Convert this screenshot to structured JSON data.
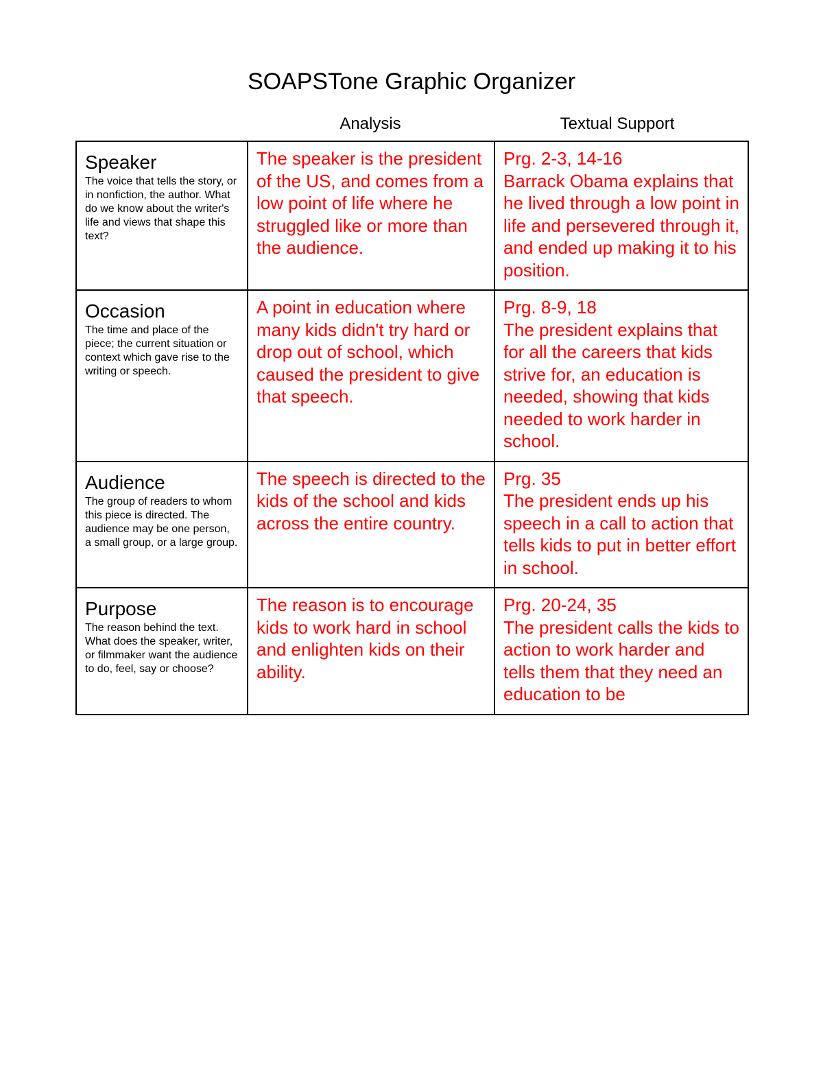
{
  "title": "SOAPSTone Graphic Organizer",
  "columns": {
    "analysis": "Analysis",
    "support": "Textual Support"
  },
  "text_color": "#000000",
  "answer_color": "#ff0000",
  "border_color": "#000000",
  "background_color": "#ffffff",
  "rows": [
    {
      "category": "Speaker",
      "description": "The voice that tells the story, or in nonfiction, the author. What do we know about the writer's life and views that shape this text?",
      "analysis": "The speaker is the president of the US, and comes from a low point of life where he struggled like or more than the audience.",
      "support_ref": "Prg. 2-3, 14-16",
      "support_text": "Barrack Obama explains that he lived through a low point in life and persevered through it, and ended up making it to his position."
    },
    {
      "category": "Occasion",
      "description": "The time and place of the piece; the current situation or context which gave rise to the writing or speech.",
      "analysis": "A point in education where many kids didn't try hard or drop out of school, which caused the president to give that speech.",
      "support_ref": "Prg. 8-9, 18",
      "support_text": "The president explains that for all the careers that kids strive for, an education is needed, showing that kids needed to work harder in school."
    },
    {
      "category": "Audience",
      "description": "The group of readers to whom this piece is directed. The audience may be one person, a small group, or a large group.",
      "analysis": "The speech is directed to the kids of the school and kids across the entire country.",
      "support_ref": "Prg. 35",
      "support_text": "The president ends up his speech in a call to action that tells kids to put in better effort in school."
    },
    {
      "category": "Purpose",
      "description": "The reason behind the text. What does the speaker, writer, or filmmaker want the audience to do, feel, say or choose?",
      "analysis": "The reason is to encourage kids to work hard in school and enlighten kids on their ability.",
      "support_ref": "Prg. 20-24, 35",
      "support_text": "The president calls the kids to action to work harder and tells them that they need an education to be"
    }
  ]
}
